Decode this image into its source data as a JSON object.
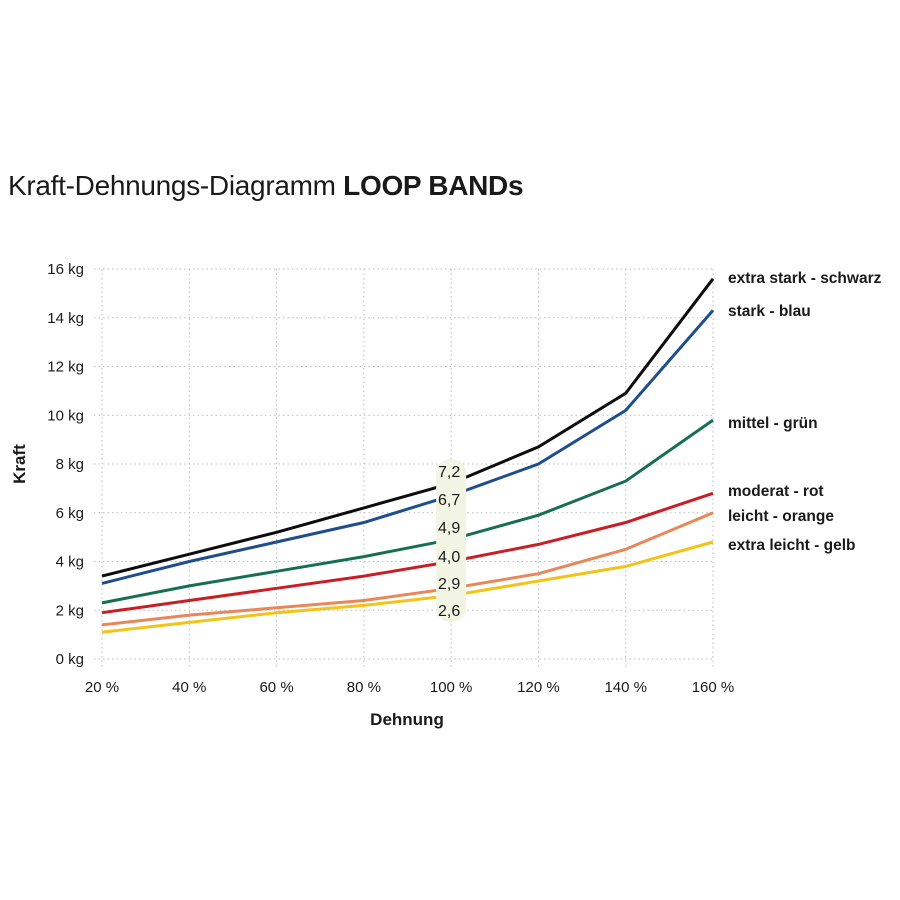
{
  "chart_data": {
    "type": "line",
    "title_regular": "Kraft-Dehnungs-Diagramm",
    "title_bold": "LOOP BANDs",
    "xlabel": "Dehnung",
    "ylabel": "Kraft",
    "x": [
      20,
      40,
      60,
      80,
      100,
      120,
      140,
      160
    ],
    "x_tick_labels": [
      "20 %",
      "40 %",
      "60 %",
      "80 %",
      "100 %",
      "120 %",
      "140 %",
      "160 %"
    ],
    "xlim": [
      20,
      160
    ],
    "y_ticks": [
      0,
      2,
      4,
      6,
      8,
      10,
      12,
      14,
      16
    ],
    "y_tick_labels": [
      "0 kg",
      "2 kg",
      "4 kg",
      "6 kg",
      "8 kg",
      "10 kg",
      "12 kg",
      "14 kg",
      "16 kg"
    ],
    "ylim": [
      0,
      16
    ],
    "grid": true,
    "series": [
      {
        "name": "extra stark - schwarz",
        "color": "#0d0d0d",
        "values": [
          3.4,
          4.3,
          5.2,
          6.2,
          7.2,
          8.7,
          10.9,
          15.6
        ],
        "label_at_100": "7,2"
      },
      {
        "name": "stark - blau",
        "color": "#1f4e8c",
        "values": [
          3.1,
          4.0,
          4.8,
          5.6,
          6.7,
          8.0,
          10.2,
          14.3
        ],
        "label_at_100": "6,7"
      },
      {
        "name": "mittel - grün",
        "color": "#16704f",
        "values": [
          2.3,
          3.0,
          3.6,
          4.2,
          4.9,
          5.9,
          7.3,
          9.8
        ],
        "label_at_100": "4,9"
      },
      {
        "name": "moderat - rot",
        "color": "#c81f26",
        "values": [
          1.9,
          2.4,
          2.9,
          3.4,
          4.0,
          4.7,
          5.6,
          6.8
        ],
        "label_at_100": "4,0"
      },
      {
        "name": "leicht - orange",
        "color": "#e8875a",
        "values": [
          1.4,
          1.8,
          2.1,
          2.4,
          2.9,
          3.5,
          4.5,
          6.0
        ],
        "label_at_100": "2,9"
      },
      {
        "name": "extra leicht - gelb",
        "color": "#f2c318",
        "values": [
          1.1,
          1.5,
          1.9,
          2.2,
          2.6,
          3.2,
          3.8,
          4.8
        ],
        "label_at_100": "2,6"
      }
    ]
  }
}
